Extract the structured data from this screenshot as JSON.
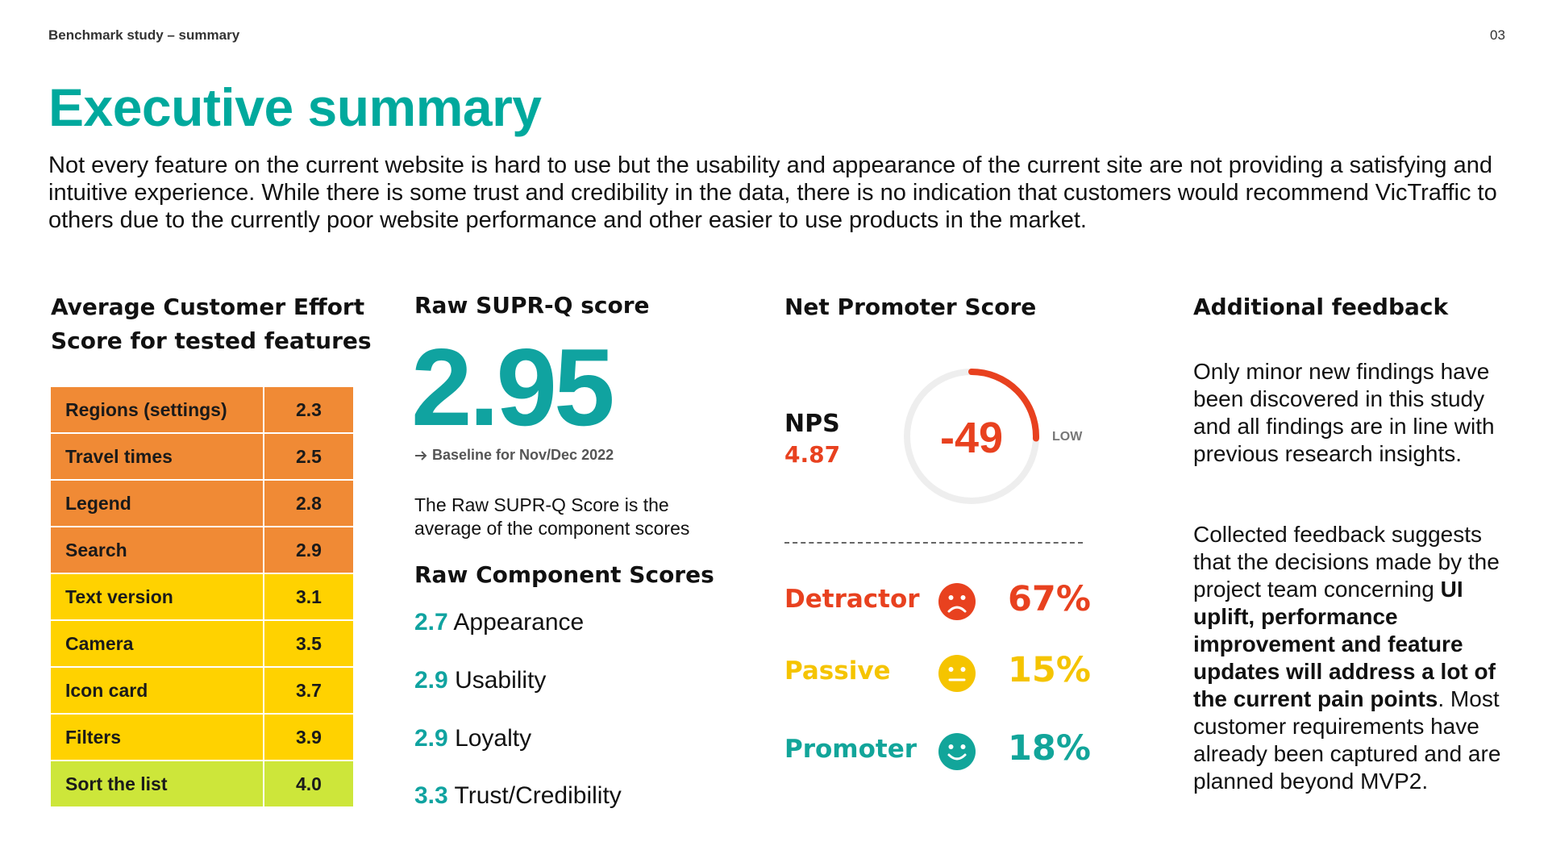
{
  "header": {
    "label": "Benchmark study – summary",
    "page_number": "03"
  },
  "title": "Executive summary",
  "intro": "Not every feature on the current website is hard to use but the usability and appearance of the current site are not providing a satisfying and intuitive experience. While there is some trust and credibility in the data, there is no indication that customers would recommend VicTraffic to others due to the currently poor website performance and other easier to use products in the market.",
  "ces": {
    "title": "Average Customer Effort Score for tested features",
    "rows": [
      {
        "name": "Regions (settings)",
        "value": "2.3",
        "color": "#f08a35"
      },
      {
        "name": "Travel times",
        "value": "2.5",
        "color": "#f08a35"
      },
      {
        "name": "Legend",
        "value": "2.8",
        "color": "#f08a35"
      },
      {
        "name": "Search",
        "value": "2.9",
        "color": "#f08a35"
      },
      {
        "name": "Text version",
        "value": "3.1",
        "color": "#ffd200"
      },
      {
        "name": "Camera",
        "value": "3.5",
        "color": "#ffd200"
      },
      {
        "name": "Icon card",
        "value": "3.7",
        "color": "#ffd200"
      },
      {
        "name": "Filters",
        "value": "3.9",
        "color": "#ffd200"
      },
      {
        "name": "Sort the list",
        "value": "4.0",
        "color": "#cde63a"
      }
    ]
  },
  "suprq": {
    "title": "Raw SUPR-Q score",
    "score": "2.95",
    "baseline": "Baseline for Nov/Dec 2022",
    "description": "The Raw SUPR-Q Score is the average of the component scores",
    "components_title": "Raw Component Scores",
    "components": [
      {
        "value": "2.7",
        "label": "Appearance"
      },
      {
        "value": "2.9",
        "label": "Usability"
      },
      {
        "value": "2.9",
        "label": "Loyalty"
      },
      {
        "value": "3.3",
        "label": "Trust/Credibility"
      }
    ]
  },
  "nps": {
    "title": "Net Promoter Score",
    "label": "NPS",
    "value": "4.87",
    "score": "-49",
    "score_fraction": 0.255,
    "rating": "LOW",
    "categories": [
      {
        "label": "Detractor",
        "pct": "67%",
        "color": "#e8411f",
        "face": "sad-face-icon"
      },
      {
        "label": "Passive",
        "pct": "15%",
        "color": "#f5c400",
        "face": "neutral-face-icon"
      },
      {
        "label": "Promoter",
        "pct": "18%",
        "color": "#12a59a",
        "face": "happy-face-icon"
      }
    ]
  },
  "feedback": {
    "title": "Additional feedback",
    "p1": "Only minor new findings have been discovered in this study and all findings are in line with previous research insights.",
    "p2_start": "Collected feedback suggests that the decisions made by the project team concerning ",
    "p2_bold": "UI uplift, performance improvement and feature updates will address a lot of the current pain points",
    "p2_end": ". Most customer requirements have already been captured and are planned beyond MVP2."
  }
}
